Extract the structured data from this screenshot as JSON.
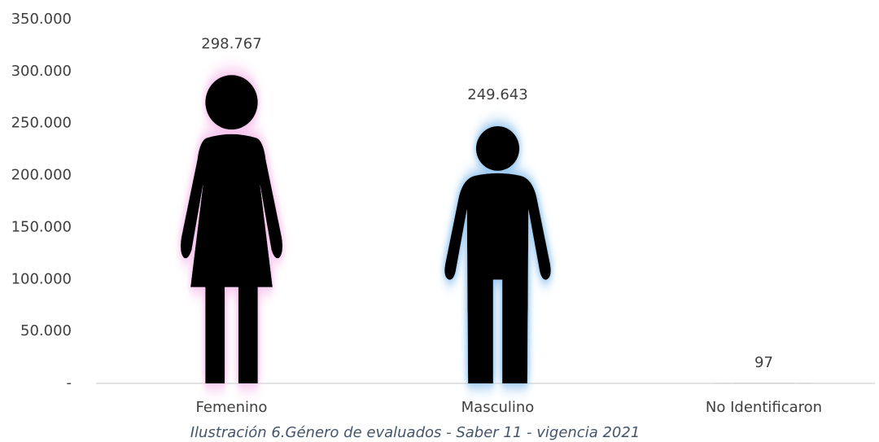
{
  "chart_data": {
    "type": "pictograph",
    "categories": [
      "Femenino",
      "Masculino",
      "No Identificaron"
    ],
    "values": [
      298767,
      249643,
      97
    ],
    "value_labels": [
      "298.767",
      "249.643",
      "97"
    ],
    "shapes": [
      "female",
      "male",
      "male"
    ],
    "color": "#000000",
    "glow_colors": [
      "#f7c6ee",
      "#9ecbf2",
      "#cccccc"
    ],
    "ylim": [
      0,
      350000
    ],
    "yticks": [
      {
        "value": 0,
        "label": "-"
      },
      {
        "value": 50000,
        "label": "50.000"
      },
      {
        "value": 100000,
        "label": "100.000"
      },
      {
        "value": 150000,
        "label": "150.000"
      },
      {
        "value": 200000,
        "label": "200.000"
      },
      {
        "value": 250000,
        "label": "250.000"
      },
      {
        "value": 300000,
        "label": "300.000"
      },
      {
        "value": 350000,
        "label": "350.000"
      }
    ],
    "caption": "Ilustración 6.Género de evaluados - Saber 11 - vigencia 2021"
  }
}
